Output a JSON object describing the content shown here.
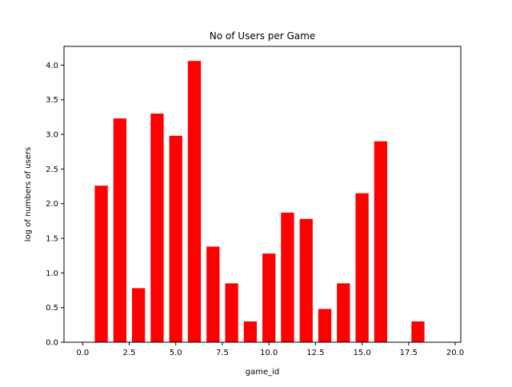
{
  "chart_data": {
    "type": "bar",
    "title": "No of Users per Game",
    "xlabel": "game_id",
    "ylabel": "log of numbers of users",
    "xlim": [
      -1.0,
      20.3
    ],
    "ylim": [
      0,
      4.27
    ],
    "bar_width": 0.7,
    "bar_color": "#ff0000",
    "grid": false,
    "x": [
      1,
      2,
      3,
      4,
      5,
      6,
      7,
      8,
      9,
      10,
      11,
      12,
      13,
      14,
      15,
      16,
      18
    ],
    "values": [
      2.26,
      3.23,
      0.78,
      3.3,
      2.98,
      4.06,
      1.38,
      0.85,
      0.3,
      1.28,
      1.87,
      1.78,
      0.48,
      0.85,
      2.15,
      2.9,
      0.3
    ],
    "x_ticks": [
      0.0,
      2.5,
      5.0,
      7.5,
      10.0,
      12.5,
      15.0,
      17.5,
      20.0
    ],
    "x_tick_labels": [
      "0.0",
      "2.5",
      "5.0",
      "7.5",
      "10.0",
      "12.5",
      "15.0",
      "17.5",
      "20.0"
    ],
    "y_ticks": [
      0.0,
      0.5,
      1.0,
      1.5,
      2.0,
      2.5,
      3.0,
      3.5,
      4.0
    ],
    "y_tick_labels": [
      "0.0",
      "0.5",
      "1.0",
      "1.5",
      "2.0",
      "2.5",
      "3.0",
      "3.5",
      "4.0"
    ]
  }
}
